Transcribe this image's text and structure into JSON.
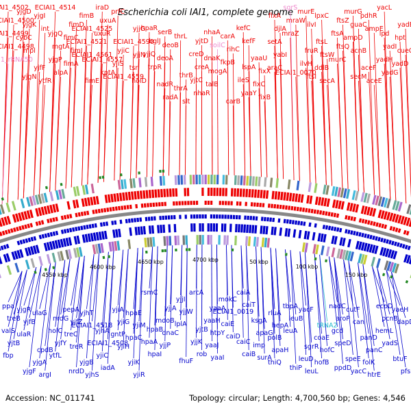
{
  "title": "Escherichia coli IAI1, complete genome",
  "footer": {
    "accession": "Accession: NC_011741",
    "summary": "Topology: circular; Length: 4,700,560 bp; Genes: 4,546"
  },
  "colors": {
    "forward": "#ee0000",
    "reverse": "#0000cc",
    "backbone": "#888888",
    "rna": "#ee88cc",
    "rna_rev": "#22bbcc",
    "marker": "#228822"
  },
  "kbp_labels": [
    "4550 kbp",
    "4600 kbp",
    "4650 kbp",
    "4700 kbp",
    "50 kbp",
    "100 kbp",
    "150 kbp"
  ],
  "genes_top": [
    {
      "text": "ECIAI1_4502",
      "c": "r"
    },
    {
      "text": "ECIAI1_4500",
      "c": "r"
    },
    {
      "text": "ECIAI1_4499",
      "c": "r"
    },
    {
      "text": "ECIAI1_4498",
      "c": "r"
    },
    {
      "text": "ECIAI1_rRNA50",
      "c": "p"
    },
    {
      "text": "yjgN",
      "c": "r"
    },
    {
      "text": "yjgD",
      "c": "r"
    },
    {
      "text": "yjgK",
      "c": "r"
    },
    {
      "text": "cybC",
      "c": "r"
    },
    {
      "text": "mpl",
      "c": "r"
    },
    {
      "text": "yjfF",
      "c": "r"
    },
    {
      "text": "ytfR",
      "c": "r"
    },
    {
      "text": "yjgI",
      "c": "r"
    },
    {
      "text": "int",
      "c": "r"
    },
    {
      "text": "yjgQ",
      "c": "r"
    },
    {
      "text": "mgtA",
      "c": "r"
    },
    {
      "text": "yjgP",
      "c": "r"
    },
    {
      "text": "alpA",
      "c": "r"
    },
    {
      "text": "ECIAI1_4514",
      "c": "r"
    },
    {
      "text": "fimD",
      "c": "r"
    },
    {
      "text": "fimC",
      "c": "r"
    },
    {
      "text": "fimI",
      "c": "r"
    },
    {
      "text": "fimA",
      "c": "r"
    },
    {
      "text": "fimE",
      "c": "r"
    },
    {
      "text": "fimB",
      "c": "r"
    },
    {
      "text": "ECIAI1_4525",
      "c": "r"
    },
    {
      "text": "ECIAI1_4521",
      "c": "r"
    },
    {
      "text": "ECIAI1_4561",
      "c": "r"
    },
    {
      "text": "ECIAI1_4557",
      "c": "r"
    },
    {
      "text": "kptA",
      "c": "r"
    },
    {
      "text": "iraD",
      "c": "r"
    },
    {
      "text": "uxuA",
      "c": "r"
    },
    {
      "text": "uxuR",
      "c": "r"
    },
    {
      "text": "yjiC",
      "c": "r"
    },
    {
      "text": "yjiS",
      "c": "r"
    },
    {
      "text": "ECIAI1_4559",
      "c": "r"
    },
    {
      "text": "prfC",
      "c": "r"
    },
    {
      "text": "yjjG",
      "c": "r"
    },
    {
      "text": "ECIAI1_4590",
      "c": "r"
    },
    {
      "text": "yjjN",
      "c": "r"
    },
    {
      "text": "tsr",
      "c": "r"
    },
    {
      "text": "holD",
      "c": "r"
    },
    {
      "text": "hpaR",
      "c": "r"
    },
    {
      "text": "bglJ",
      "c": "r"
    },
    {
      "text": "yjjQ",
      "c": "r"
    },
    {
      "text": "trpR",
      "c": "r"
    },
    {
      "text": "nadR",
      "c": "r"
    },
    {
      "text": "radA",
      "c": "r"
    },
    {
      "text": "serB",
      "c": "r"
    },
    {
      "text": "deoB",
      "c": "r"
    },
    {
      "text": "deoA",
      "c": "r"
    },
    {
      "text": "thrB",
      "c": "r"
    },
    {
      "text": "thrA",
      "c": "r"
    },
    {
      "text": "slt",
      "c": "r"
    },
    {
      "text": "thrL",
      "c": "r"
    },
    {
      "text": "yjtD",
      "c": "r"
    },
    {
      "text": "creD",
      "c": "r"
    },
    {
      "text": "creA",
      "c": "r"
    },
    {
      "text": "yjtC",
      "c": "r"
    },
    {
      "text": "nhaR",
      "c": "r"
    },
    {
      "text": "nhaA",
      "c": "r"
    },
    {
      "text": "soilC",
      "c": "p"
    },
    {
      "text": "dnaK",
      "c": "r"
    },
    {
      "text": "mogA",
      "c": "r"
    },
    {
      "text": "talB",
      "c": "r"
    },
    {
      "text": "carB",
      "c": "r"
    },
    {
      "text": "carA",
      "c": "r"
    },
    {
      "text": "rihC",
      "c": "r"
    },
    {
      "text": "fkpB",
      "c": "r"
    },
    {
      "text": "lspA",
      "c": "r"
    },
    {
      "text": "ileS",
      "c": "r"
    },
    {
      "text": "yaaY",
      "c": "r"
    },
    {
      "text": "kefC",
      "c": "r"
    },
    {
      "text": "kefF",
      "c": "r"
    },
    {
      "text": "yaaU",
      "c": "r"
    },
    {
      "text": "fixX",
      "c": "r"
    },
    {
      "text": "fixC",
      "c": "r"
    },
    {
      "text": "fixB",
      "c": "r"
    },
    {
      "text": "fixA",
      "c": "r"
    },
    {
      "text": "djlA",
      "c": "r"
    },
    {
      "text": "setA",
      "c": "r"
    },
    {
      "text": "yabI",
      "c": "r"
    },
    {
      "text": "araC",
      "c": "r"
    },
    {
      "text": "ECIAI1_0070",
      "c": "r"
    },
    {
      "text": "sgrS",
      "c": "p"
    },
    {
      "text": "mraW",
      "c": "r"
    },
    {
      "text": "mraZ",
      "c": "r"
    },
    {
      "text": "fruR",
      "c": "r"
    },
    {
      "text": "ilvH",
      "c": "r"
    },
    {
      "text": "ftsI",
      "c": "r"
    },
    {
      "text": "murE",
      "c": "r"
    },
    {
      "text": "ilvI",
      "c": "r"
    },
    {
      "text": "ftsL",
      "c": "r"
    },
    {
      "text": "ftsW",
      "c": "r"
    },
    {
      "text": "ddlB",
      "c": "r"
    },
    {
      "text": "secA",
      "c": "r"
    },
    {
      "text": "lpxC",
      "c": "r"
    },
    {
      "text": "ftsZ",
      "c": "r"
    },
    {
      "text": "ftsA",
      "c": "r"
    },
    {
      "text": "ftsQ",
      "c": "r"
    },
    {
      "text": "murC",
      "c": "r"
    },
    {
      "text": "secM",
      "c": "r"
    },
    {
      "text": "murG",
      "c": "r"
    },
    {
      "text": "guaC",
      "c": "r"
    },
    {
      "text": "ampD",
      "c": "r"
    },
    {
      "text": "acnB",
      "c": "r"
    },
    {
      "text": "aceF",
      "c": "r"
    },
    {
      "text": "aceE",
      "c": "r"
    },
    {
      "text": "pdhR",
      "c": "r"
    },
    {
      "text": "ampE",
      "c": "r"
    },
    {
      "text": "lpd",
      "c": "r"
    },
    {
      "text": "yadI",
      "c": "r"
    },
    {
      "text": "yadH",
      "c": "r"
    },
    {
      "text": "yadG",
      "c": "r"
    },
    {
      "text": "yacL",
      "c": "r"
    },
    {
      "text": "yadE",
      "c": "r"
    },
    {
      "text": "hpt",
      "c": "r"
    },
    {
      "text": "cueO",
      "c": "r"
    },
    {
      "text": "yadD",
      "c": "r"
    }
  ],
  "genes_bottom": [
    {
      "text": "ppa",
      "c": "b"
    },
    {
      "text": "treB",
      "c": "b"
    },
    {
      "text": "valS",
      "c": "b"
    },
    {
      "text": "yjtB",
      "c": "b"
    },
    {
      "text": "fbp",
      "c": "b"
    },
    {
      "text": "yjgF",
      "c": "b"
    },
    {
      "text": "yjgR",
      "c": "b"
    },
    {
      "text": "yjfB",
      "c": "b"
    },
    {
      "text": "ulaR",
      "c": "b"
    },
    {
      "text": "cpdB",
      "c": "b"
    },
    {
      "text": "yjgA",
      "c": "b"
    },
    {
      "text": "argI",
      "c": "b"
    },
    {
      "text": "ulaG",
      "c": "b"
    },
    {
      "text": "nrdG",
      "c": "b"
    },
    {
      "text": "holC",
      "c": "b"
    },
    {
      "text": "yjfY",
      "c": "b"
    },
    {
      "text": "ytfL",
      "c": "b"
    },
    {
      "text": "nrdD",
      "c": "b"
    },
    {
      "text": "pepA",
      "c": "b"
    },
    {
      "text": "yjfZ",
      "c": "b"
    },
    {
      "text": "treC",
      "c": "b"
    },
    {
      "text": "treR",
      "c": "b"
    },
    {
      "text": "yjgB",
      "c": "b"
    },
    {
      "text": "yjhS",
      "c": "b"
    },
    {
      "text": "yjhT",
      "c": "b"
    },
    {
      "text": "ECIAI1_4518",
      "c": "b"
    },
    {
      "text": "yjhA",
      "c": "b"
    },
    {
      "text": "ECIAI1_4508",
      "c": "b"
    },
    {
      "text": "yjiC",
      "c": "b"
    },
    {
      "text": "iadA",
      "c": "b"
    },
    {
      "text": "yjiA",
      "c": "b"
    },
    {
      "text": "yjiG",
      "c": "b"
    },
    {
      "text": "gntP",
      "c": "b"
    },
    {
      "text": "yjiH",
      "c": "b"
    },
    {
      "text": "yjiK",
      "c": "b"
    },
    {
      "text": "yjiR",
      "c": "b"
    },
    {
      "text": "hpaE",
      "c": "b"
    },
    {
      "text": "yjiM",
      "c": "b"
    },
    {
      "text": "hpaC",
      "c": "b"
    },
    {
      "text": "hpaB",
      "c": "b"
    },
    {
      "text": "hpaA",
      "c": "b"
    },
    {
      "text": "hpaI",
      "c": "b"
    },
    {
      "text": "rsmC",
      "c": "b"
    },
    {
      "text": "yjjA",
      "c": "b"
    },
    {
      "text": "mdoB",
      "c": "b"
    },
    {
      "text": "dnaC",
      "c": "b"
    },
    {
      "text": "yjjP",
      "c": "b"
    },
    {
      "text": "fhuF",
      "c": "b"
    },
    {
      "text": "yjjI",
      "c": "b"
    },
    {
      "text": "yjjW",
      "c": "b"
    },
    {
      "text": "lplA",
      "c": "b"
    },
    {
      "text": "yjtB",
      "c": "b"
    },
    {
      "text": "yjjK",
      "c": "b"
    },
    {
      "text": "rob",
      "c": "b"
    },
    {
      "text": "arcA",
      "c": "b"
    },
    {
      "text": "yaaA",
      "c": "b"
    },
    {
      "text": "yaaH",
      "c": "b"
    },
    {
      "text": "htpY",
      "c": "b"
    },
    {
      "text": "yaaJ",
      "c": "b"
    },
    {
      "text": "yaaI",
      "c": "b"
    },
    {
      "text": "mokC",
      "c": "b"
    },
    {
      "text": "ECIAI1_0019",
      "c": "b"
    },
    {
      "text": "caiE",
      "c": "b"
    },
    {
      "text": "caiD",
      "c": "b"
    },
    {
      "text": "caiC",
      "c": "b"
    },
    {
      "text": "caiB",
      "c": "b"
    },
    {
      "text": "caiA",
      "c": "b"
    },
    {
      "text": "caiT",
      "c": "b"
    },
    {
      "text": "ksgA",
      "c": "b"
    },
    {
      "text": "apaG",
      "c": "b"
    },
    {
      "text": "imp",
      "c": "b"
    },
    {
      "text": "surA",
      "c": "b"
    },
    {
      "text": "rluA",
      "c": "b"
    },
    {
      "text": "hepA",
      "c": "b"
    },
    {
      "text": "polB",
      "c": "b"
    },
    {
      "text": "apaH",
      "c": "b"
    },
    {
      "text": "thiQ",
      "c": "b"
    },
    {
      "text": "thiP",
      "c": "b"
    },
    {
      "text": "tbpA",
      "c": "b"
    },
    {
      "text": "leuB",
      "c": "b"
    },
    {
      "text": "leuA",
      "c": "b"
    },
    {
      "text": "sgrR",
      "c": "b"
    },
    {
      "text": "leuD",
      "c": "b"
    },
    {
      "text": "leuL",
      "c": "b"
    },
    {
      "text": "yacF",
      "c": "b"
    },
    {
      "text": "tRNA2",
      "c": "t"
    },
    {
      "text": "coaE",
      "c": "b"
    },
    {
      "text": "hofC",
      "c": "b"
    },
    {
      "text": "hofB",
      "c": "b"
    },
    {
      "text": "ppdD",
      "c": "b"
    },
    {
      "text": "nadC",
      "c": "b"
    },
    {
      "text": "aroP",
      "c": "b"
    },
    {
      "text": "gcd",
      "c": "b"
    },
    {
      "text": "speD",
      "c": "b"
    },
    {
      "text": "speE",
      "c": "b"
    },
    {
      "text": "yacC",
      "c": "b"
    },
    {
      "text": "cutF",
      "c": "b"
    },
    {
      "text": "can",
      "c": "b"
    },
    {
      "text": "panD",
      "c": "b"
    },
    {
      "text": "panC",
      "c": "b"
    },
    {
      "text": "folK",
      "c": "b"
    },
    {
      "text": "htrE",
      "c": "b"
    },
    {
      "text": "ecpD",
      "c": "b"
    },
    {
      "text": "pcnB",
      "c": "b"
    },
    {
      "text": "hemL",
      "c": "b"
    },
    {
      "text": "yadS",
      "c": "b"
    },
    {
      "text": "btuF",
      "c": "b"
    },
    {
      "text": "pfs",
      "c": "b"
    },
    {
      "text": "yaeH",
      "c": "b"
    },
    {
      "text": "dapD",
      "c": "b"
    }
  ]
}
